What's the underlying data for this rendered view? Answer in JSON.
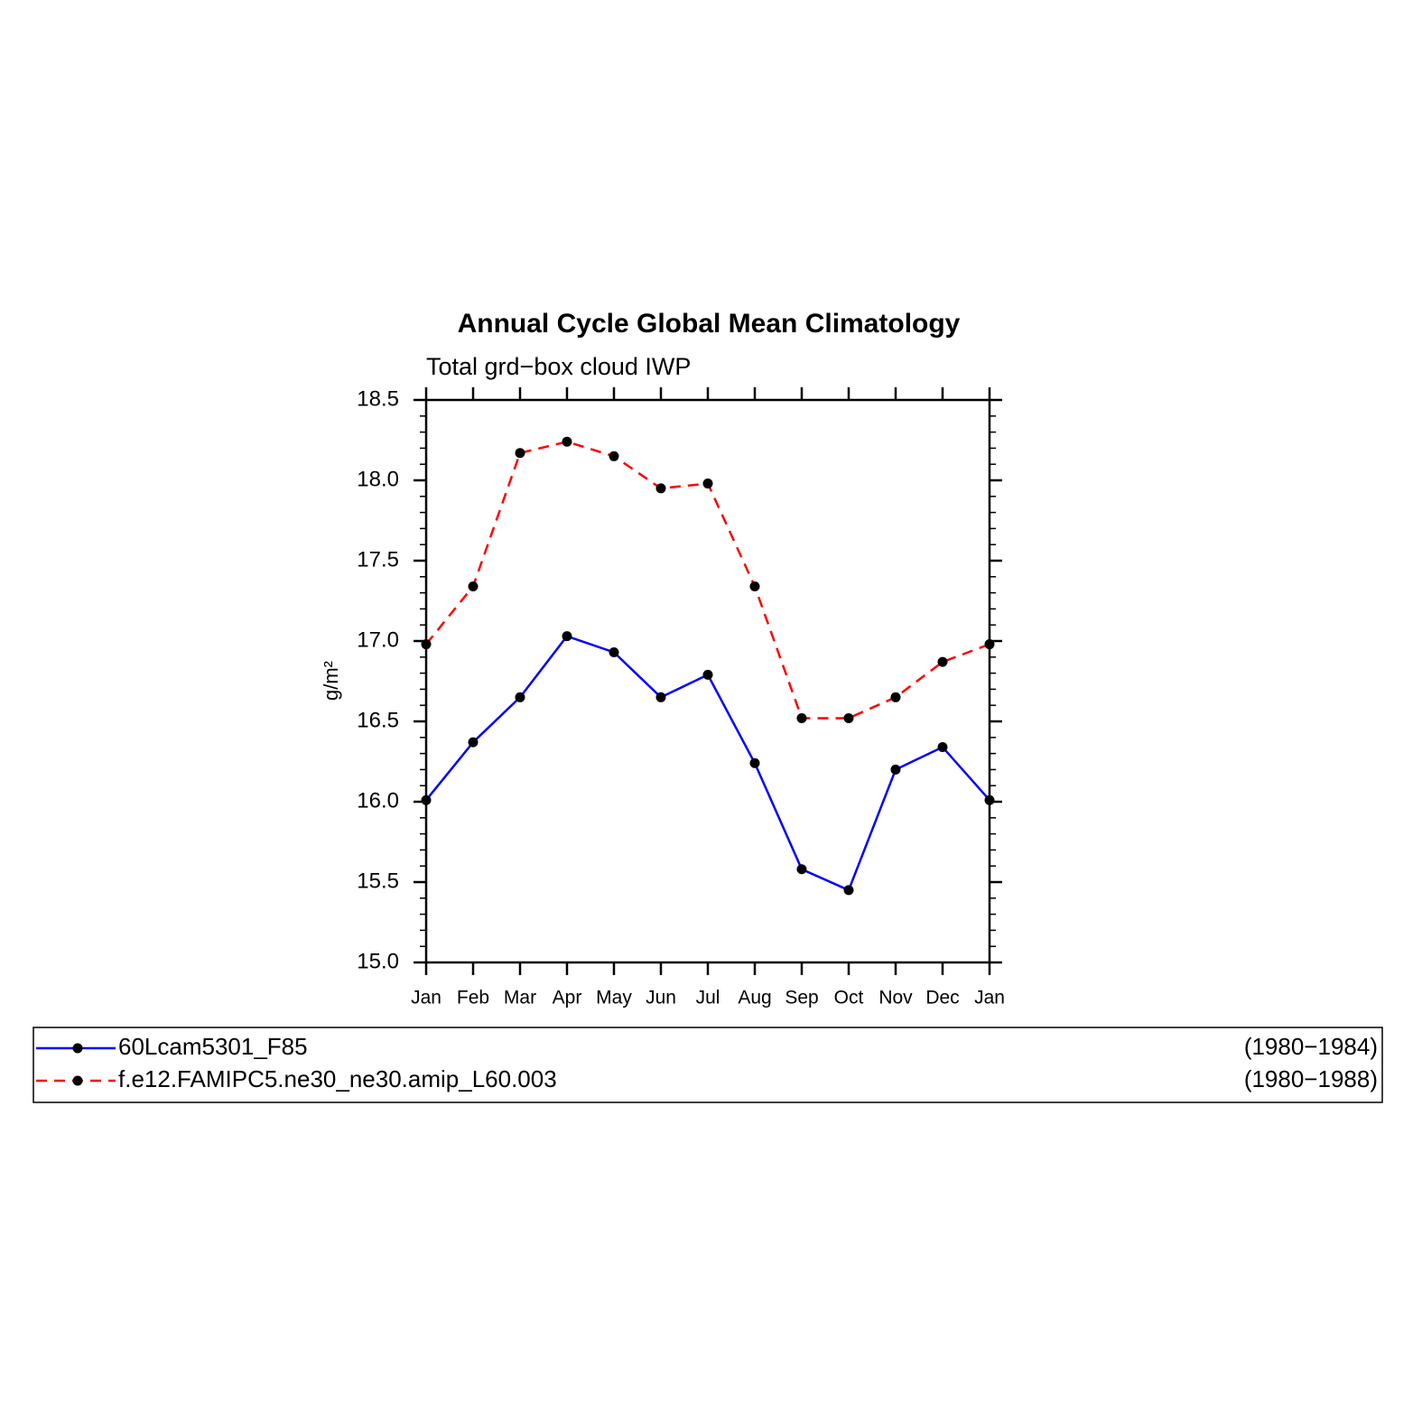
{
  "chart_data": {
    "type": "line",
    "title": "Annual Cycle Global Mean Climatology",
    "subtitle": "Total grd−box cloud IWP",
    "y_label": "g/m²",
    "categories": [
      "Jan",
      "Feb",
      "Mar",
      "Apr",
      "May",
      "Jun",
      "Jul",
      "Aug",
      "Sep",
      "Oct",
      "Nov",
      "Dec",
      "Jan"
    ],
    "series": [
      {
        "name": "60Lcam5301_F85",
        "period": "(1980−1984)",
        "color": "#0000ff",
        "dash": false,
        "values": [
          16.01,
          16.37,
          16.65,
          17.03,
          16.93,
          16.65,
          16.79,
          16.24,
          15.58,
          15.45,
          16.2,
          16.34,
          16.01
        ]
      },
      {
        "name": "f.e12.FAMIPC5.ne30_ne30.amip_L60.003",
        "period": "(1980−1988)",
        "color": "#ff0000",
        "dash": true,
        "values": [
          16.98,
          17.34,
          18.17,
          18.24,
          18.15,
          17.95,
          17.98,
          17.34,
          16.52,
          16.52,
          16.65,
          16.87,
          16.98
        ]
      }
    ],
    "ylim": [
      15,
      18.5
    ],
    "yticks": [
      {
        "value": 15,
        "label": "15.0"
      },
      15.5,
      {
        "value": 16,
        "label": "16.0"
      },
      16.5,
      {
        "value": 17,
        "label": "17.0"
      },
      17.5,
      {
        "value": 18,
        "label": "18.0"
      },
      18.5
    ],
    "grid": false
  }
}
